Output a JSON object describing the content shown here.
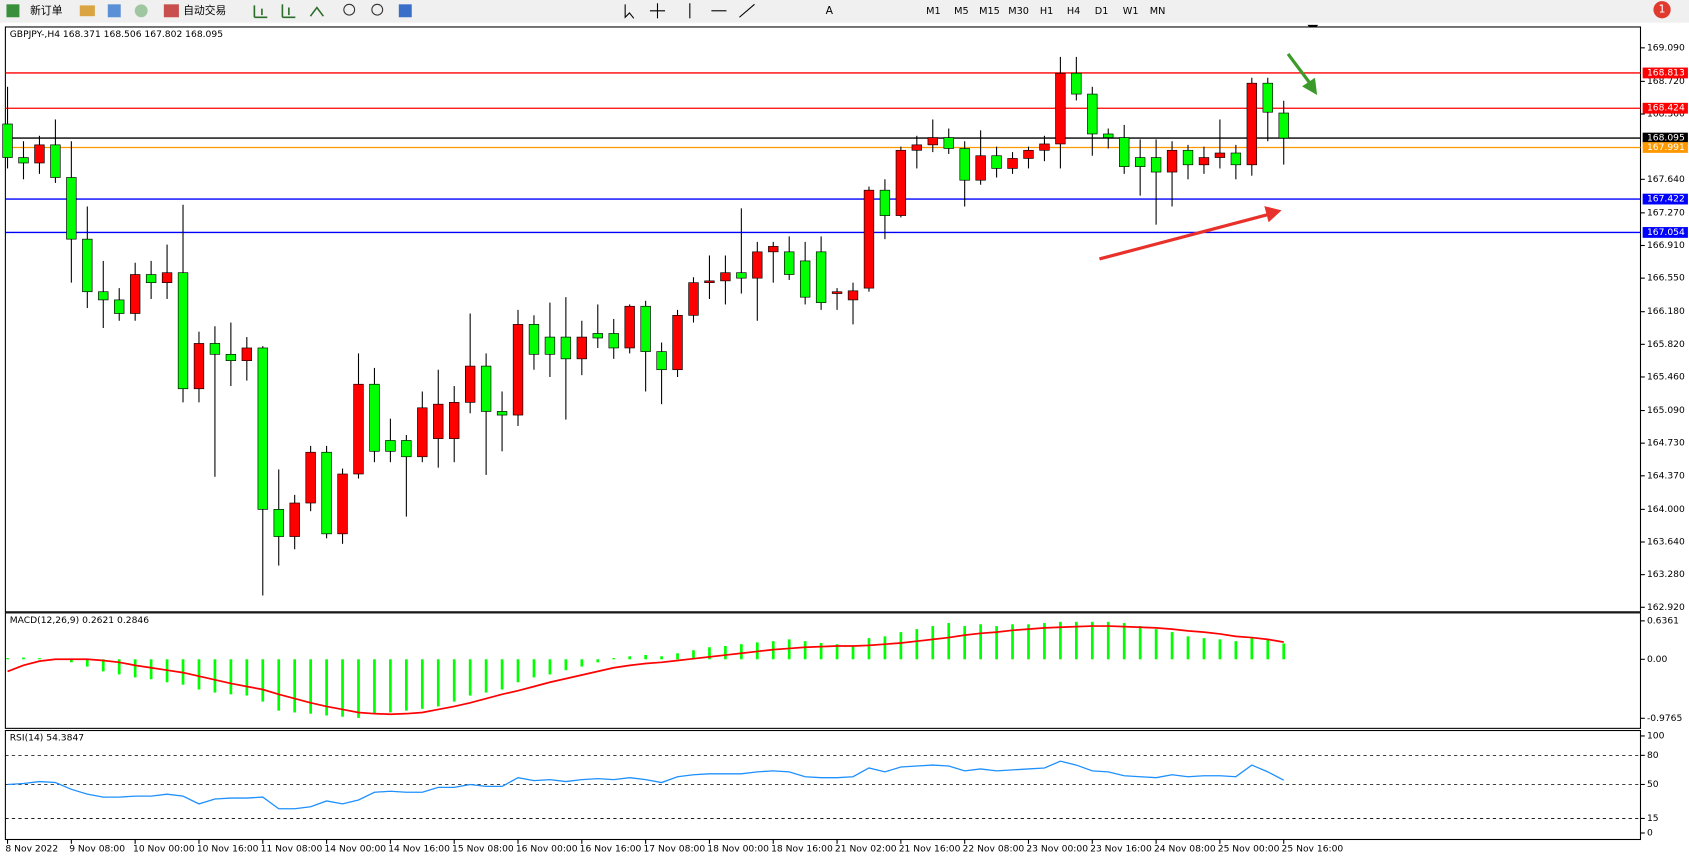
{
  "toolbar": {
    "buttons": [
      "新订单",
      "自动交易"
    ],
    "timeframes": [
      "M1",
      "M5",
      "M15",
      "M30",
      "H1",
      "H4",
      "D1",
      "W1",
      "MN"
    ],
    "badge": "1"
  },
  "chart_data": [
    {
      "type": "candlestick",
      "title": "GBPJPY-,H4 168.371 168.506 167.802 168.095",
      "up_color": "#ff0000",
      "down_color": "#00ff00",
      "categories": [
        "8 Nov 2022",
        null,
        null,
        null,
        "9 Nov 08:00",
        null,
        null,
        null,
        "10 Nov 00:00",
        null,
        null,
        null,
        "10 Nov 16:00",
        null,
        null,
        null,
        "11 Nov 08:00",
        null,
        null,
        null,
        "14 Nov 00:00",
        null,
        null,
        null,
        "14 Nov 16:00",
        null,
        null,
        null,
        "15 Nov 08:00",
        null,
        null,
        null,
        "16 Nov 00:00",
        null,
        null,
        null,
        "16 Nov 16:00",
        null,
        null,
        null,
        "17 Nov 08:00",
        null,
        null,
        null,
        "18 Nov 00:00",
        null,
        null,
        null,
        "18 Nov 16:00",
        null,
        null,
        null,
        "21 Nov 02:00",
        null,
        null,
        null,
        "21 Nov 16:00",
        null,
        null,
        null,
        "22 Nov 08:00",
        null,
        null,
        null,
        "23 Nov 00:00",
        null,
        null,
        null,
        "23 Nov 16:00",
        null,
        null,
        null,
        "24 Nov 08:00",
        null,
        null,
        null,
        "25 Nov 00:00",
        null,
        null,
        null,
        "25 Nov 16:00"
      ],
      "open": [
        168.25,
        167.88,
        167.82,
        168.02,
        167.66,
        166.98,
        166.4,
        166.31,
        166.16,
        166.59,
        166.5,
        166.61,
        165.33,
        165.83,
        165.71,
        165.64,
        165.78,
        164.0,
        163.7,
        164.07,
        164.63,
        163.73,
        164.39,
        165.38,
        164.76,
        164.76,
        164.58,
        164.78,
        164.78,
        165.18,
        165.58,
        165.08,
        165.04,
        166.04,
        165.9,
        165.9,
        165.66,
        165.94,
        165.94,
        165.78,
        166.24,
        165.74,
        165.54,
        166.14,
        166.5,
        166.52,
        166.61,
        166.55,
        166.84,
        166.84,
        166.74,
        166.84,
        166.38,
        166.31,
        166.44,
        167.52,
        167.24,
        167.96,
        168.02,
        168.1,
        167.98,
        167.63,
        167.9,
        167.76,
        167.87,
        167.96,
        168.03,
        168.81,
        168.58,
        168.14,
        168.1,
        167.88,
        167.88,
        167.72,
        167.96,
        167.8,
        167.88,
        167.93,
        167.8,
        168.7,
        168.371
      ],
      "high": [
        168.66,
        168.06,
        168.12,
        168.3,
        168.06,
        167.34,
        166.74,
        166.44,
        166.72,
        166.74,
        166.92,
        167.36,
        165.96,
        166.02,
        166.06,
        165.9,
        165.8,
        164.44,
        164.16,
        164.7,
        164.7,
        164.45,
        165.72,
        165.56,
        165.0,
        164.82,
        165.3,
        165.54,
        165.36,
        166.16,
        165.72,
        165.3,
        166.2,
        166.14,
        166.28,
        166.34,
        166.08,
        166.26,
        166.1,
        166.26,
        166.3,
        165.84,
        166.2,
        166.56,
        166.8,
        166.8,
        167.32,
        166.95,
        166.95,
        167.01,
        166.95,
        167.01,
        166.44,
        166.5,
        167.56,
        167.64,
        168.0,
        168.12,
        168.3,
        168.2,
        168.06,
        168.18,
        168.0,
        167.94,
        168.0,
        168.12,
        168.99,
        168.99,
        168.66,
        168.2,
        168.24,
        168.08,
        168.08,
        168.06,
        168.02,
        168.0,
        168.3,
        168.02,
        168.76,
        168.76,
        168.506
      ],
      "low": [
        167.76,
        167.64,
        167.7,
        167.6,
        166.5,
        166.22,
        166.0,
        166.08,
        166.08,
        166.32,
        166.32,
        165.18,
        165.18,
        164.36,
        165.36,
        165.42,
        163.05,
        163.38,
        163.56,
        163.98,
        163.68,
        163.62,
        164.34,
        164.52,
        164.52,
        163.92,
        164.52,
        164.46,
        164.52,
        165.06,
        164.38,
        164.64,
        164.92,
        165.54,
        165.46,
        164.99,
        165.48,
        165.78,
        165.66,
        165.72,
        165.3,
        165.16,
        165.46,
        166.06,
        166.32,
        166.26,
        166.38,
        166.08,
        166.5,
        166.53,
        166.26,
        166.2,
        166.2,
        166.04,
        166.4,
        166.98,
        167.22,
        167.76,
        167.94,
        167.92,
        167.34,
        167.58,
        167.66,
        167.7,
        167.76,
        167.84,
        167.76,
        168.51,
        167.9,
        167.98,
        167.7,
        167.46,
        167.14,
        167.34,
        167.64,
        167.7,
        167.76,
        167.64,
        167.68,
        168.06,
        167.802
      ],
      "close": [
        167.88,
        167.82,
        168.02,
        167.66,
        166.98,
        166.4,
        166.31,
        166.16,
        166.59,
        166.5,
        166.61,
        165.33,
        165.83,
        165.71,
        165.64,
        165.78,
        164.0,
        163.7,
        164.07,
        164.63,
        163.73,
        164.39,
        165.38,
        164.64,
        164.64,
        164.58,
        165.12,
        165.16,
        165.18,
        165.58,
        165.08,
        165.04,
        166.04,
        165.71,
        165.71,
        165.66,
        165.9,
        165.89,
        165.78,
        166.24,
        165.74,
        165.54,
        166.14,
        166.5,
        166.52,
        166.61,
        166.55,
        166.84,
        166.9,
        166.59,
        166.34,
        166.28,
        166.4,
        166.41,
        167.52,
        167.24,
        167.96,
        168.02,
        168.1,
        167.98,
        167.63,
        167.9,
        167.76,
        167.87,
        167.96,
        168.03,
        168.81,
        168.58,
        168.14,
        168.1,
        167.78,
        167.78,
        167.72,
        167.96,
        167.8,
        167.88,
        167.93,
        167.8,
        168.7,
        168.38,
        168.095
      ],
      "ylim": [
        162.87,
        169.32
      ],
      "yticks": [
        {
          "value": 169.09,
          "label": "169.090"
        },
        {
          "value": 168.72,
          "label": "168.720"
        },
        {
          "value": 168.36,
          "label": "168.360"
        },
        {
          "value": 167.64,
          "label": "167.640"
        },
        {
          "value": 167.27,
          "label": "167.270"
        },
        {
          "value": 166.91,
          "label": "166.910"
        },
        {
          "value": 166.55,
          "label": "166.550"
        },
        {
          "value": 166.18,
          "label": "166.180"
        },
        {
          "value": 165.82,
          "label": "165.820"
        },
        {
          "value": 165.46,
          "label": "165.460"
        },
        {
          "value": 165.09,
          "label": "165.090"
        },
        {
          "value": 164.73,
          "label": "164.730"
        },
        {
          "value": 164.37,
          "label": "164.370"
        },
        {
          "value": 164,
          "label": "164.000"
        },
        {
          "value": 163.64,
          "label": "163.640"
        },
        {
          "value": 163.28,
          "label": "163.280"
        },
        {
          "value": 162.92,
          "label": "162.920"
        }
      ],
      "levels": [
        {
          "value": 168.813,
          "color": "#ff0000"
        },
        {
          "value": 168.424,
          "color": "#ff0000"
        },
        {
          "value": 168.095,
          "color": "#000000"
        },
        {
          "value": 167.991,
          "color": "#ff9900"
        },
        {
          "value": 167.422,
          "color": "#0000ff"
        },
        {
          "value": 167.054,
          "color": "#0000ff"
        }
      ]
    },
    {
      "type": "macd",
      "title": "MACD(12,26,9) 0.2621 0.2846",
      "histogram_color": "#00ff00",
      "signal_color": "#ff0000",
      "histogram": [
        0.02,
        0.03,
        0.02,
        0,
        -0.05,
        -0.12,
        -0.2,
        -0.25,
        -0.3,
        -0.33,
        -0.38,
        -0.42,
        -0.5,
        -0.55,
        -0.58,
        -0.6,
        -0.7,
        -0.85,
        -0.88,
        -0.9,
        -0.93,
        -0.95,
        -0.97,
        -0.9,
        -0.88,
        -0.85,
        -0.82,
        -0.78,
        -0.7,
        -0.6,
        -0.55,
        -0.5,
        -0.38,
        -0.3,
        -0.25,
        -0.18,
        -0.12,
        -0.05,
        0.02,
        0.05,
        0.07,
        0.05,
        0.1,
        0.15,
        0.2,
        0.22,
        0.25,
        0.28,
        0.3,
        0.33,
        0.3,
        0.27,
        0.25,
        0.22,
        0.35,
        0.38,
        0.45,
        0.5,
        0.55,
        0.6,
        0.55,
        0.58,
        0.55,
        0.58,
        0.58,
        0.6,
        0.62,
        0.62,
        0.62,
        0.62,
        0.6,
        0.55,
        0.5,
        0.45,
        0.38,
        0.35,
        0.33,
        0.3,
        0.35,
        0.33,
        0.2621
      ],
      "signal": [
        -0.2,
        -0.1,
        -0.03,
        0,
        0,
        0,
        -0.02,
        -0.05,
        -0.1,
        -0.14,
        -0.18,
        -0.22,
        -0.28,
        -0.34,
        -0.4,
        -0.45,
        -0.5,
        -0.58,
        -0.65,
        -0.72,
        -0.78,
        -0.83,
        -0.88,
        -0.9,
        -0.91,
        -0.9,
        -0.88,
        -0.83,
        -0.78,
        -0.72,
        -0.65,
        -0.58,
        -0.52,
        -0.45,
        -0.38,
        -0.32,
        -0.26,
        -0.2,
        -0.14,
        -0.1,
        -0.07,
        -0.05,
        -0.02,
        0.01,
        0.04,
        0.07,
        0.1,
        0.13,
        0.16,
        0.18,
        0.2,
        0.21,
        0.22,
        0.22,
        0.23,
        0.25,
        0.27,
        0.3,
        0.33,
        0.36,
        0.4,
        0.43,
        0.45,
        0.48,
        0.5,
        0.52,
        0.53,
        0.54,
        0.55,
        0.55,
        0.54,
        0.53,
        0.52,
        0.5,
        0.47,
        0.45,
        0.42,
        0.38,
        0.36,
        0.33,
        0.2846
      ],
      "ylim": [
        -1.143,
        0.768
      ],
      "yticks": [
        0.6361,
        {
          "value": 0,
          "label": "0.00"
        },
        -0.9765
      ]
    },
    {
      "type": "line",
      "title": "RSI(14) 54.3847",
      "color": "#1e90ff",
      "values": [
        50,
        51,
        53,
        52,
        45,
        40,
        37,
        37,
        38,
        38,
        40,
        38,
        30,
        35,
        36,
        36,
        37,
        25,
        25,
        27,
        33,
        30,
        34,
        42,
        43,
        42,
        42,
        47,
        47,
        50,
        48,
        48,
        57,
        54,
        55,
        53,
        55,
        56,
        55,
        57,
        55,
        52,
        58,
        60,
        61,
        61,
        61,
        63,
        64,
        63,
        58,
        57,
        57,
        58,
        67,
        63,
        68,
        69,
        70,
        69,
        64,
        66,
        64,
        65,
        66,
        67,
        74,
        70,
        64,
        63,
        59,
        58,
        57,
        60,
        58,
        59,
        59,
        58,
        70,
        63,
        54.3847
      ],
      "ylim": [
        -6.7,
        105.6
      ],
      "yticks": [
        100,
        80,
        50,
        15,
        0
      ],
      "levels": [
        80,
        50,
        15
      ]
    }
  ]
}
